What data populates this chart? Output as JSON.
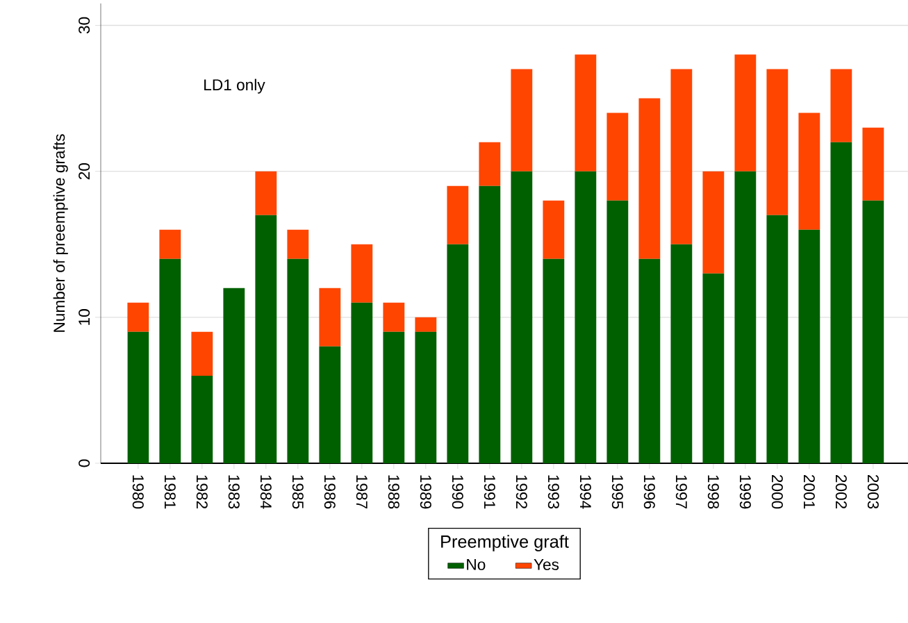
{
  "chart_data": {
    "type": "bar",
    "stacked": true,
    "ylabel": "Number of preemptive grafts",
    "legend_title": "Preemptive graft",
    "annotations": [
      "LD1 only"
    ],
    "categories": [
      "1980",
      "1981",
      "1982",
      "1983",
      "1984",
      "1985",
      "1986",
      "1987",
      "1988",
      "1989",
      "1990",
      "1991",
      "1992",
      "1993",
      "1994",
      "1995",
      "1996",
      "1997",
      "1998",
      "1999",
      "2000",
      "2001",
      "2002",
      "2003"
    ],
    "series": [
      {
        "name": "No",
        "color": "#006000",
        "values": [
          9,
          14,
          6,
          12,
          17,
          14,
          8,
          11,
          9,
          9,
          15,
          19,
          20,
          14,
          20,
          18,
          14,
          15,
          13,
          20,
          17,
          16,
          22,
          18
        ]
      },
      {
        "name": "Yes",
        "color": "#ff4500",
        "values": [
          2,
          2,
          3,
          0,
          3,
          2,
          4,
          4,
          2,
          1,
          4,
          3,
          7,
          4,
          8,
          6,
          11,
          12,
          7,
          8,
          10,
          8,
          5,
          5
        ]
      }
    ],
    "ylim": [
      0,
      31.5
    ],
    "yticks": [
      0,
      10,
      20,
      30
    ],
    "grid": "y",
    "legend": "bottom"
  }
}
